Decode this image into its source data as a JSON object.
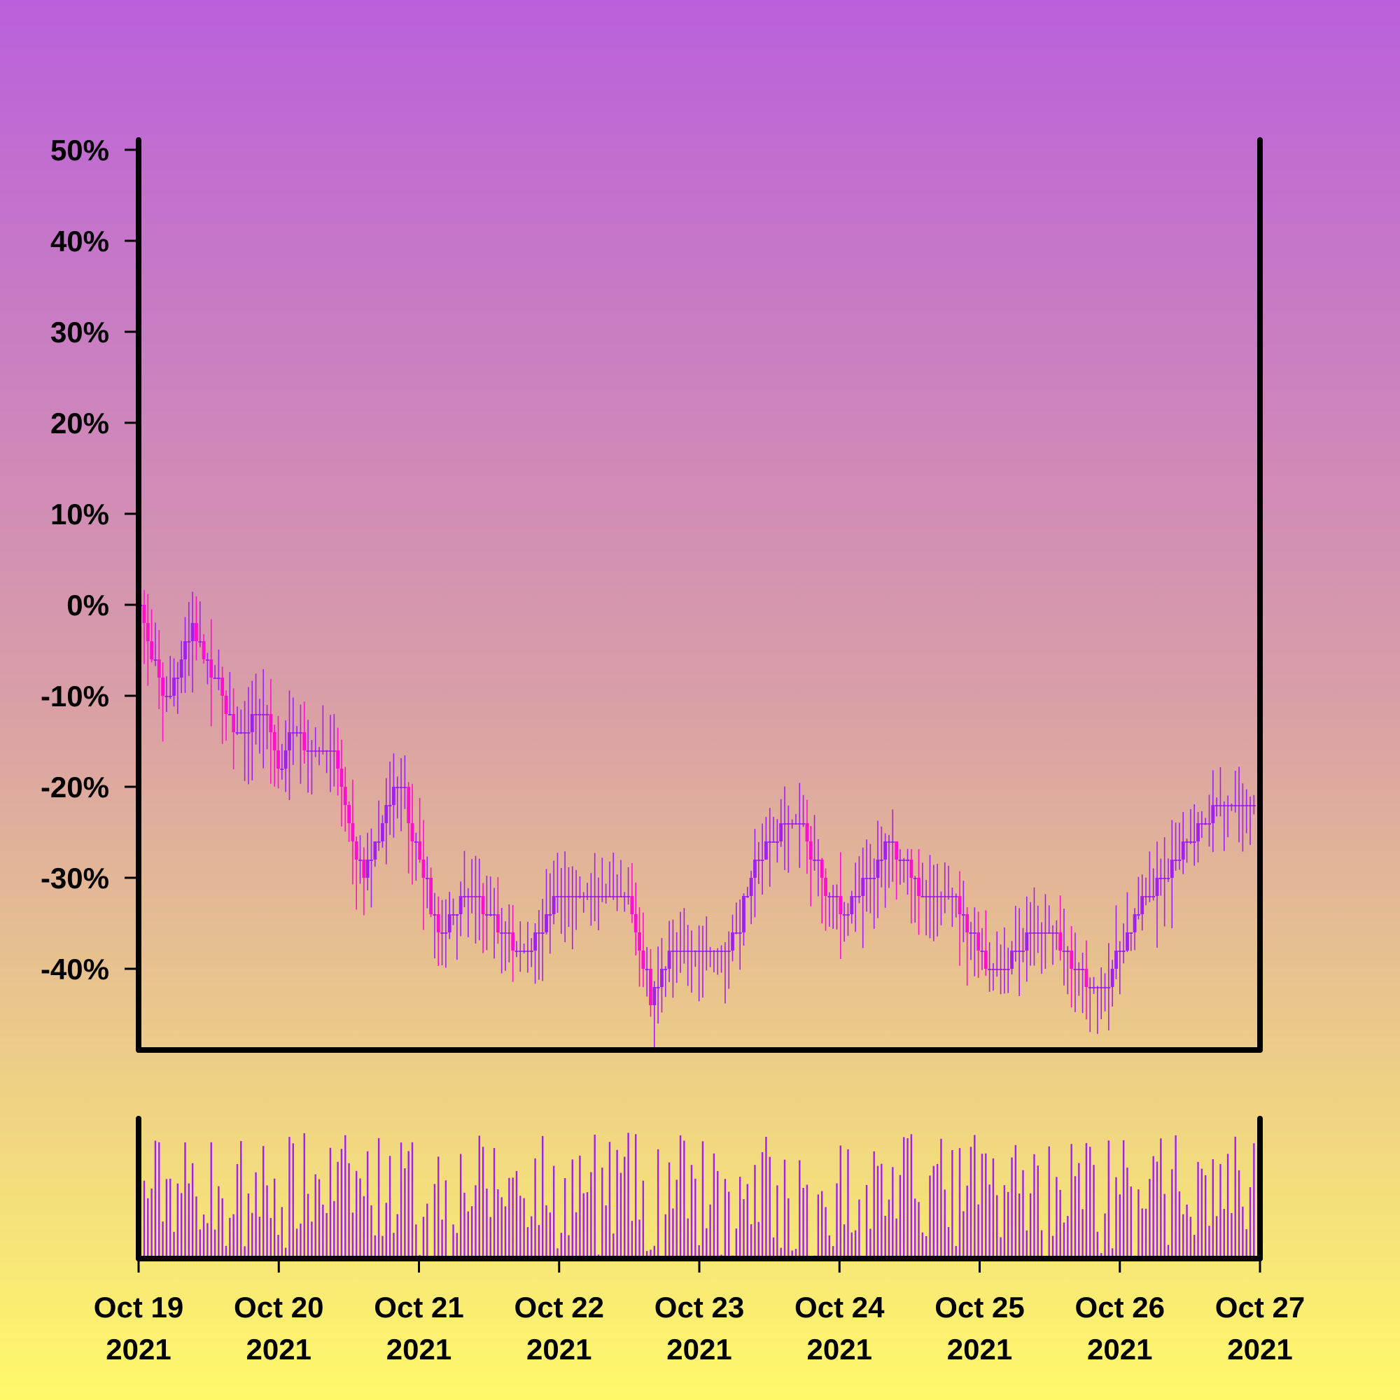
{
  "chart_data": {
    "type": "candlestick",
    "x_axis": {
      "ticks": [
        {
          "line1": "Oct 19",
          "line2": "2021"
        },
        {
          "line1": "Oct 20",
          "line2": "2021"
        },
        {
          "line1": "Oct 21",
          "line2": "2021"
        },
        {
          "line1": "Oct 22",
          "line2": "2021"
        },
        {
          "line1": "Oct 23",
          "line2": "2021"
        },
        {
          "line1": "Oct 24",
          "line2": "2021"
        },
        {
          "line1": "Oct 25",
          "line2": "2021"
        },
        {
          "line1": "Oct 26",
          "line2": "2021"
        },
        {
          "line1": "Oct 27",
          "line2": "2021"
        }
      ],
      "range": [
        "2021-10-19",
        "2021-10-27"
      ]
    },
    "y_axis": {
      "tick_labels": [
        "50%",
        "40%",
        "30%",
        "20%",
        "10%",
        "0%",
        "-10%",
        "-20%",
        "-30%",
        "-40%"
      ],
      "tick_values": [
        50,
        40,
        30,
        20,
        10,
        0,
        -10,
        -20,
        -30,
        -40
      ],
      "range": [
        -49,
        50
      ],
      "unit": "%"
    },
    "path_keypoints": [
      {
        "day": 0.0,
        "value": 0
      },
      {
        "day": 0.2,
        "value": -11
      },
      {
        "day": 0.38,
        "value": -2
      },
      {
        "day": 0.7,
        "value": -14
      },
      {
        "day": 0.9,
        "value": -12
      },
      {
        "day": 1.0,
        "value": -18
      },
      {
        "day": 1.1,
        "value": -14
      },
      {
        "day": 1.25,
        "value": -17
      },
      {
        "day": 1.35,
        "value": -14
      },
      {
        "day": 1.6,
        "value": -30
      },
      {
        "day": 1.85,
        "value": -19
      },
      {
        "day": 2.15,
        "value": -37
      },
      {
        "day": 2.3,
        "value": -32
      },
      {
        "day": 2.45,
        "value": -33
      },
      {
        "day": 2.75,
        "value": -39
      },
      {
        "day": 2.95,
        "value": -33
      },
      {
        "day": 3.25,
        "value": -33
      },
      {
        "day": 3.5,
        "value": -33
      },
      {
        "day": 3.65,
        "value": -44
      },
      {
        "day": 3.8,
        "value": -38
      },
      {
        "day": 4.05,
        "value": -37
      },
      {
        "day": 4.2,
        "value": -39
      },
      {
        "day": 4.4,
        "value": -28
      },
      {
        "day": 4.7,
        "value": -23
      },
      {
        "day": 4.85,
        "value": -30
      },
      {
        "day": 5.05,
        "value": -34
      },
      {
        "day": 5.35,
        "value": -26
      },
      {
        "day": 5.6,
        "value": -32
      },
      {
        "day": 5.8,
        "value": -32
      },
      {
        "day": 6.1,
        "value": -41
      },
      {
        "day": 6.45,
        "value": -35
      },
      {
        "day": 6.85,
        "value": -43
      },
      {
        "day": 7.15,
        "value": -33
      },
      {
        "day": 7.55,
        "value": -25
      },
      {
        "day": 7.75,
        "value": -21
      },
      {
        "day": 7.95,
        "value": -22
      }
    ],
    "up_color": "#a020f0",
    "down_color": "#ff10d0",
    "volume_color": "#a020f0",
    "grid": false,
    "legend": "none"
  }
}
